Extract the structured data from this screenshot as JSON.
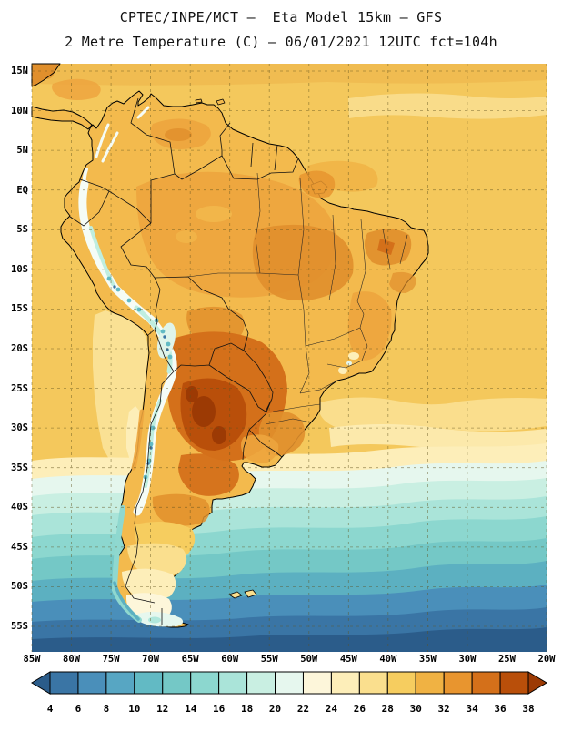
{
  "title": {
    "line1": "CPTEC/INPE/MCT –  Eta Model 15km – GFS",
    "line2": "2 Metre Temperature (C) – 06/01/2021 12UTC fct=104h"
  },
  "axes": {
    "lat_labels": [
      "15N",
      "10N",
      "5N",
      "EQ",
      "5S",
      "10S",
      "15S",
      "20S",
      "25S",
      "30S",
      "35S",
      "40S",
      "45S",
      "50S",
      "55S"
    ],
    "lon_labels": [
      "85W",
      "80W",
      "75W",
      "70W",
      "65W",
      "60W",
      "55W",
      "50W",
      "45W",
      "40W",
      "35W",
      "30W",
      "25W",
      "20W"
    ]
  },
  "colorbar": {
    "tick_labels": [
      "4",
      "6",
      "8",
      "10",
      "12",
      "14",
      "16",
      "18",
      "20",
      "22",
      "24",
      "26",
      "28",
      "30",
      "32",
      "34",
      "36",
      "38"
    ],
    "colors": [
      "#2b5c8a",
      "#3a75a5",
      "#4a8fba",
      "#57a6c3",
      "#62bac4",
      "#74c8c6",
      "#8cd7cf",
      "#aae4d9",
      "#c9efe2",
      "#e6f7ee",
      "#fdf6da",
      "#fdeeb9",
      "#fadf8e",
      "#f6cd5f",
      "#f0b243",
      "#e8952f",
      "#d4701a",
      "#b94f0a",
      "#9c3a04"
    ]
  },
  "chart_data": {
    "type": "heatmap",
    "title": "2 Metre Temperature (C)",
    "source": "CPTEC/INPE/MCT",
    "model": "Eta Model 15km – GFS",
    "valid": "06/01/2021 12UTC fct=104h",
    "units": "C",
    "lon_range": [
      "85W",
      "20W"
    ],
    "lat_range": [
      "55S",
      "15N"
    ],
    "scale_values": [
      4,
      6,
      8,
      10,
      12,
      14,
      16,
      18,
      20,
      22,
      24,
      26,
      28,
      30,
      32,
      34,
      36,
      38
    ],
    "scale_colors": [
      "#2b5c8a",
      "#3a75a5",
      "#4a8fba",
      "#57a6c3",
      "#62bac4",
      "#74c8c6",
      "#8cd7cf",
      "#aae4d9",
      "#c9efe2",
      "#e6f7ee",
      "#fdf6da",
      "#fdeeb9",
      "#fadf8e",
      "#f6cd5f",
      "#f0b243",
      "#e8952f",
      "#d4701a",
      "#b94f0a",
      "#9c3a04"
    ],
    "legend_position": "bottom",
    "grid": "dashed 5-degree lat/lon"
  }
}
